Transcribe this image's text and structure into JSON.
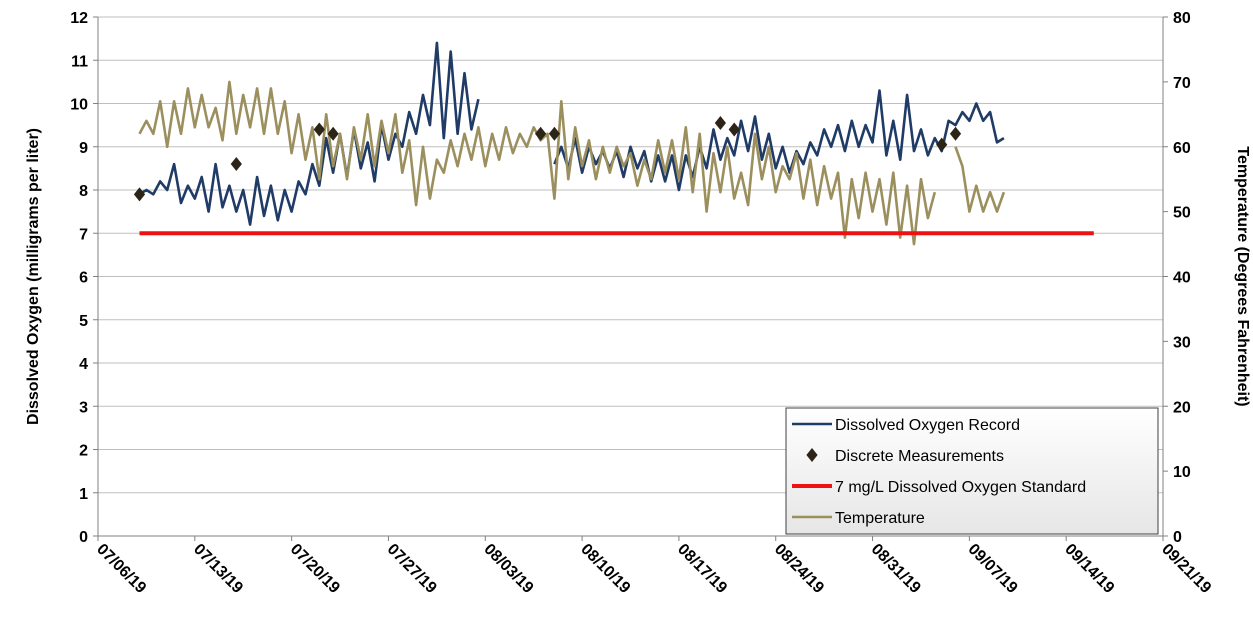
{
  "chart_data": {
    "type": "line",
    "title": "",
    "xlabel": "",
    "ylabel": "Dissolved Oxygen (milligrams per liter)",
    "y2label": "Temperature (Degrees Fahrenheit)",
    "x_ticks": [
      "07/06/19",
      "07/13/19",
      "07/20/19",
      "07/27/19",
      "08/03/19",
      "08/10/19",
      "08/17/19",
      "08/24/19",
      "08/31/19",
      "09/07/19",
      "09/14/19",
      "09/21/19"
    ],
    "x_range": [
      "2019-07-06",
      "2019-09-21"
    ],
    "ylim": [
      0,
      12
    ],
    "y_ticks": [
      0,
      1,
      2,
      3,
      4,
      5,
      6,
      7,
      8,
      9,
      10,
      11,
      12
    ],
    "y2lim": [
      0,
      80
    ],
    "y2_ticks": [
      0,
      10,
      20,
      30,
      40,
      50,
      60,
      70,
      80
    ],
    "grid": true,
    "legend_position": "bottom-right",
    "colors": {
      "do_record": "#1f3b66",
      "discrete": "#2b2417",
      "standard": "#ee1111",
      "temperature": "#9c8f5e",
      "grid": "#bfbfbf",
      "legend_bg": "#e6e6e6"
    },
    "series": [
      {
        "name": "Dissolved Oxygen Record",
        "axis": "left",
        "style": "line",
        "points": [
          [
            "2019-07-09",
            7.9
          ],
          [
            "2019-07-09 12:00",
            8.0
          ],
          [
            "2019-07-10",
            7.9
          ],
          [
            "2019-07-10 12:00",
            8.2
          ],
          [
            "2019-07-11",
            8.0
          ],
          [
            "2019-07-11 12:00",
            8.6
          ],
          [
            "2019-07-12",
            7.7
          ],
          [
            "2019-07-12 12:00",
            8.1
          ],
          [
            "2019-07-13",
            7.8
          ],
          [
            "2019-07-13 12:00",
            8.3
          ],
          [
            "2019-07-14",
            7.5
          ],
          [
            "2019-07-14 12:00",
            8.6
          ],
          [
            "2019-07-15",
            7.6
          ],
          [
            "2019-07-15 12:00",
            8.1
          ],
          [
            "2019-07-16",
            7.5
          ],
          [
            "2019-07-16 12:00",
            8.0
          ],
          [
            "2019-07-17",
            7.2
          ],
          [
            "2019-07-17 12:00",
            8.3
          ],
          [
            "2019-07-18",
            7.4
          ],
          [
            "2019-07-18 12:00",
            8.1
          ],
          [
            "2019-07-19",
            7.3
          ],
          [
            "2019-07-19 12:00",
            8.0
          ],
          [
            "2019-07-20",
            7.5
          ],
          [
            "2019-07-20 12:00",
            8.2
          ],
          [
            "2019-07-21",
            7.9
          ],
          [
            "2019-07-21 12:00",
            8.6
          ],
          [
            "2019-07-22",
            8.1
          ],
          [
            "2019-07-22 12:00",
            9.2
          ],
          [
            "2019-07-23",
            8.4
          ],
          [
            "2019-07-23 12:00",
            9.3
          ],
          [
            "2019-07-24",
            8.3
          ],
          [
            "2019-07-24 12:00",
            9.4
          ],
          [
            "2019-07-25",
            8.5
          ],
          [
            "2019-07-25 12:00",
            9.1
          ],
          [
            "2019-07-26",
            8.2
          ],
          [
            "2019-07-26 12:00",
            9.5
          ],
          [
            "2019-07-27",
            8.7
          ],
          [
            "2019-07-27 12:00",
            9.3
          ],
          [
            "2019-07-28",
            9.0
          ],
          [
            "2019-07-28 12:00",
            9.8
          ],
          [
            "2019-07-29",
            9.3
          ],
          [
            "2019-07-29 12:00",
            10.2
          ],
          [
            "2019-07-30",
            9.5
          ],
          [
            "2019-07-30 12:00",
            11.4
          ],
          [
            "2019-07-31",
            9.2
          ],
          [
            "2019-07-31 12:00",
            11.2
          ],
          [
            "2019-08-01",
            9.3
          ],
          [
            "2019-08-01 12:00",
            10.7
          ],
          [
            "2019-08-02",
            9.4
          ],
          [
            "2019-08-02 12:00",
            10.1
          ],
          null,
          [
            "2019-08-08",
            8.6
          ],
          [
            "2019-08-08 12:00",
            9.0
          ],
          [
            "2019-08-09",
            8.5
          ],
          [
            "2019-08-09 12:00",
            9.2
          ],
          [
            "2019-08-10",
            8.4
          ],
          [
            "2019-08-10 12:00",
            9.0
          ],
          [
            "2019-08-11",
            8.6
          ],
          [
            "2019-08-11 12:00",
            8.9
          ],
          [
            "2019-08-12",
            8.5
          ],
          [
            "2019-08-12 12:00",
            8.9
          ],
          [
            "2019-08-13",
            8.3
          ],
          [
            "2019-08-13 12:00",
            9.0
          ],
          [
            "2019-08-14",
            8.5
          ],
          [
            "2019-08-14 12:00",
            8.9
          ],
          [
            "2019-08-15",
            8.2
          ],
          [
            "2019-08-15 12:00",
            8.8
          ],
          [
            "2019-08-16",
            8.2
          ],
          [
            "2019-08-16 12:00",
            8.8
          ],
          [
            "2019-08-17",
            8.0
          ],
          [
            "2019-08-17 12:00",
            8.8
          ],
          [
            "2019-08-18",
            8.3
          ],
          [
            "2019-08-18 12:00",
            9.0
          ],
          [
            "2019-08-19",
            8.5
          ],
          [
            "2019-08-19 12:00",
            9.4
          ],
          [
            "2019-08-20",
            8.7
          ],
          [
            "2019-08-20 12:00",
            9.2
          ],
          [
            "2019-08-21",
            8.8
          ],
          [
            "2019-08-21 12:00",
            9.6
          ],
          [
            "2019-08-22",
            8.9
          ],
          [
            "2019-08-22 12:00",
            9.7
          ],
          [
            "2019-08-23",
            8.7
          ],
          [
            "2019-08-23 12:00",
            9.3
          ],
          [
            "2019-08-24",
            8.5
          ],
          [
            "2019-08-24 12:00",
            9.0
          ],
          [
            "2019-08-25",
            8.4
          ],
          [
            "2019-08-25 12:00",
            8.9
          ],
          [
            "2019-08-26",
            8.6
          ],
          [
            "2019-08-26 12:00",
            9.1
          ],
          [
            "2019-08-27",
            8.8
          ],
          [
            "2019-08-27 12:00",
            9.4
          ],
          [
            "2019-08-28",
            9.0
          ],
          [
            "2019-08-28 12:00",
            9.5
          ],
          [
            "2019-08-29",
            8.9
          ],
          [
            "2019-08-29 12:00",
            9.6
          ],
          [
            "2019-08-30",
            9.0
          ],
          [
            "2019-08-30 12:00",
            9.5
          ],
          [
            "2019-08-31",
            9.1
          ],
          [
            "2019-08-31 12:00",
            10.3
          ],
          [
            "2019-09-01",
            8.8
          ],
          [
            "2019-09-01 12:00",
            9.6
          ],
          [
            "2019-09-02",
            8.7
          ],
          [
            "2019-09-02 12:00",
            10.2
          ],
          [
            "2019-09-03",
            8.9
          ],
          [
            "2019-09-03 12:00",
            9.4
          ],
          [
            "2019-09-04",
            8.8
          ],
          [
            "2019-09-04 12:00",
            9.2
          ],
          [
            "2019-09-05",
            8.9
          ],
          [
            "2019-09-05 12:00",
            9.6
          ],
          [
            "2019-09-06",
            9.5
          ],
          [
            "2019-09-06 12:00",
            9.8
          ],
          [
            "2019-09-07",
            9.6
          ],
          [
            "2019-09-07 12:00",
            10.0
          ],
          [
            "2019-09-08",
            9.6
          ],
          [
            "2019-09-08 12:00",
            9.8
          ],
          [
            "2019-09-09",
            9.1
          ],
          [
            "2019-09-09 12:00",
            9.2
          ]
        ]
      },
      {
        "name": "Discrete Measurements",
        "axis": "left",
        "style": "marker",
        "points": [
          [
            "2019-07-09",
            7.9
          ],
          [
            "2019-07-16",
            8.6
          ],
          [
            "2019-07-22",
            9.4
          ],
          [
            "2019-07-23",
            9.3
          ],
          [
            "2019-08-07",
            9.3
          ],
          [
            "2019-08-08",
            9.3
          ],
          [
            "2019-08-20",
            9.55
          ],
          [
            "2019-08-21",
            9.4
          ],
          [
            "2019-09-05",
            9.05
          ],
          [
            "2019-09-06",
            9.3
          ]
        ]
      },
      {
        "name": "7 mg/L Dissolved Oxygen Standard",
        "axis": "left",
        "style": "line",
        "points": [
          [
            "2019-07-09",
            7
          ],
          [
            "2019-09-16",
            7
          ]
        ]
      },
      {
        "name": "Temperature",
        "axis": "right",
        "style": "line",
        "points": [
          [
            "2019-07-09",
            62
          ],
          [
            "2019-07-09 12:00",
            64
          ],
          [
            "2019-07-10",
            62
          ],
          [
            "2019-07-10 12:00",
            67
          ],
          [
            "2019-07-11",
            60
          ],
          [
            "2019-07-11 12:00",
            67
          ],
          [
            "2019-07-12",
            62
          ],
          [
            "2019-07-12 12:00",
            69
          ],
          [
            "2019-07-13",
            63
          ],
          [
            "2019-07-13 12:00",
            68
          ],
          [
            "2019-07-14",
            63
          ],
          [
            "2019-07-14 12:00",
            66
          ],
          [
            "2019-07-15",
            61
          ],
          [
            "2019-07-15 12:00",
            70
          ],
          [
            "2019-07-16",
            62
          ],
          [
            "2019-07-16 12:00",
            68
          ],
          [
            "2019-07-17",
            63
          ],
          [
            "2019-07-17 12:00",
            69
          ],
          [
            "2019-07-18",
            62
          ],
          [
            "2019-07-18 12:00",
            69
          ],
          [
            "2019-07-19",
            62
          ],
          [
            "2019-07-19 12:00",
            67
          ],
          [
            "2019-07-20",
            59
          ],
          [
            "2019-07-20 12:00",
            65
          ],
          [
            "2019-07-21",
            58
          ],
          [
            "2019-07-21 12:00",
            63
          ],
          [
            "2019-07-22",
            55
          ],
          [
            "2019-07-22 12:00",
            65
          ],
          [
            "2019-07-23",
            57
          ],
          [
            "2019-07-23 12:00",
            62
          ],
          [
            "2019-07-24",
            55
          ],
          [
            "2019-07-24 12:00",
            63
          ],
          [
            "2019-07-25",
            58
          ],
          [
            "2019-07-25 12:00",
            65
          ],
          [
            "2019-07-26",
            57
          ],
          [
            "2019-07-26 12:00",
            64
          ],
          [
            "2019-07-27",
            59
          ],
          [
            "2019-07-27 12:00",
            65
          ],
          [
            "2019-07-28",
            56
          ],
          [
            "2019-07-28 12:00",
            61
          ],
          [
            "2019-07-29",
            51
          ],
          [
            "2019-07-29 12:00",
            60
          ],
          [
            "2019-07-30",
            52
          ],
          [
            "2019-07-30 12:00",
            58
          ],
          [
            "2019-07-31",
            56
          ],
          [
            "2019-07-31 12:00",
            61
          ],
          [
            "2019-08-01",
            57
          ],
          [
            "2019-08-01 12:00",
            62
          ],
          [
            "2019-08-02",
            58
          ],
          [
            "2019-08-02 12:00",
            63
          ],
          [
            "2019-08-03",
            57
          ],
          [
            "2019-08-03 12:00",
            62
          ],
          [
            "2019-08-04",
            58
          ],
          [
            "2019-08-04 12:00",
            63
          ],
          [
            "2019-08-05",
            59
          ],
          [
            "2019-08-05 12:00",
            62
          ],
          [
            "2019-08-06",
            60
          ],
          [
            "2019-08-06 12:00",
            63
          ],
          [
            "2019-08-07",
            61
          ],
          [
            "2019-08-07 12:00",
            62
          ],
          [
            "2019-08-08",
            52
          ],
          [
            "2019-08-08 12:00",
            67
          ],
          [
            "2019-08-09",
            55
          ],
          [
            "2019-08-09 12:00",
            63
          ],
          [
            "2019-08-10",
            57
          ],
          [
            "2019-08-10 12:00",
            61
          ],
          [
            "2019-08-11",
            55
          ],
          [
            "2019-08-11 12:00",
            60
          ],
          [
            "2019-08-12",
            56
          ],
          [
            "2019-08-12 12:00",
            60
          ],
          [
            "2019-08-13",
            57
          ],
          [
            "2019-08-13 12:00",
            59
          ],
          [
            "2019-08-14",
            54
          ],
          [
            "2019-08-14 12:00",
            58
          ],
          [
            "2019-08-15",
            55
          ],
          [
            "2019-08-15 12:00",
            61
          ],
          [
            "2019-08-16",
            56
          ],
          [
            "2019-08-16 12:00",
            61
          ],
          [
            "2019-08-17",
            55
          ],
          [
            "2019-08-17 12:00",
            63
          ],
          [
            "2019-08-18",
            53
          ],
          [
            "2019-08-18 12:00",
            62
          ],
          [
            "2019-08-19",
            50
          ],
          [
            "2019-08-19 12:00",
            59
          ],
          [
            "2019-08-20",
            53
          ],
          [
            "2019-08-20 12:00",
            60
          ],
          [
            "2019-08-21",
            52
          ],
          [
            "2019-08-21 12:00",
            56
          ],
          [
            "2019-08-22",
            51
          ],
          [
            "2019-08-22 12:00",
            62
          ],
          [
            "2019-08-23",
            55
          ],
          [
            "2019-08-23 12:00",
            60
          ],
          [
            "2019-08-24",
            53
          ],
          [
            "2019-08-24 12:00",
            57
          ],
          [
            "2019-08-25",
            55
          ],
          [
            "2019-08-25 12:00",
            59
          ],
          [
            "2019-08-26",
            52
          ],
          [
            "2019-08-26 12:00",
            58
          ],
          [
            "2019-08-27",
            51
          ],
          [
            "2019-08-27 12:00",
            57
          ],
          [
            "2019-08-28",
            52
          ],
          [
            "2019-08-28 12:00",
            56
          ],
          [
            "2019-08-29",
            46
          ],
          [
            "2019-08-29 12:00",
            55
          ],
          [
            "2019-08-30",
            49
          ],
          [
            "2019-08-30 12:00",
            56
          ],
          [
            "2019-08-31",
            50
          ],
          [
            "2019-08-31 12:00",
            55
          ],
          [
            "2019-09-01",
            48
          ],
          [
            "2019-09-01 12:00",
            56
          ],
          [
            "2019-09-02",
            46
          ],
          [
            "2019-09-02 12:00",
            54
          ],
          [
            "2019-09-03",
            45
          ],
          [
            "2019-09-03 12:00",
            55
          ],
          [
            "2019-09-04",
            49
          ],
          [
            "2019-09-04 12:00",
            53
          ],
          null,
          [
            "2019-09-06",
            60
          ],
          [
            "2019-09-06 12:00",
            57
          ],
          [
            "2019-09-07",
            50
          ],
          [
            "2019-09-07 12:00",
            54
          ],
          [
            "2019-09-08",
            50
          ],
          [
            "2019-09-08 12:00",
            53
          ],
          [
            "2019-09-09",
            50
          ],
          [
            "2019-09-09 12:00",
            53
          ]
        ]
      }
    ]
  }
}
